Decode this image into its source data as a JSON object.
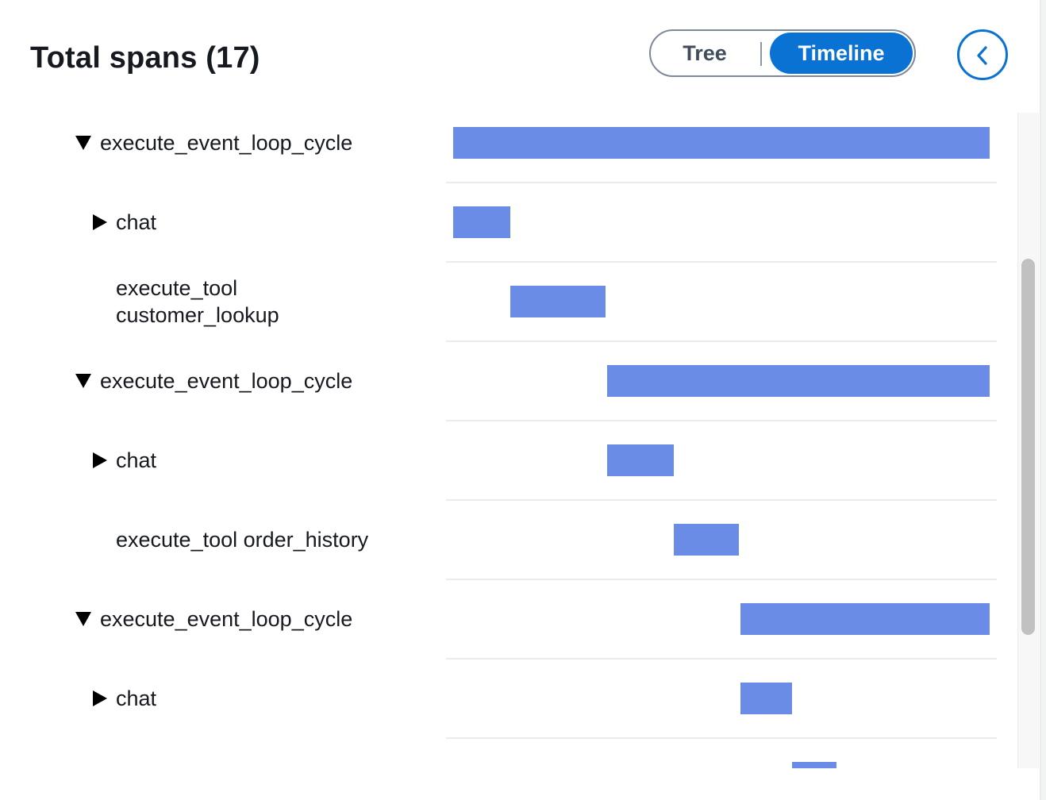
{
  "header": {
    "title": "Total spans (17)"
  },
  "view_toggle": {
    "options": [
      "Tree",
      "Timeline"
    ],
    "selected": "Timeline"
  },
  "collapse_button": {
    "icon": "chevron-left-icon"
  },
  "colors": {
    "accent": "#0972d3",
    "span_bar": "#6a8ce6",
    "text": "#16191f"
  },
  "timeline": {
    "rows": [
      {
        "label": "execute_event_loop_cycle",
        "expander": "expanded",
        "depth": 0,
        "start": 0.0,
        "end": 1.0
      },
      {
        "label": "chat",
        "expander": "collapsed",
        "depth": 1,
        "start": 0.0,
        "end": 0.106
      },
      {
        "label_lines": [
          "execute_tool",
          "customer_lookup"
        ],
        "expander": "none",
        "depth": 1,
        "start": 0.106,
        "end": 0.284
      },
      {
        "label": "execute_event_loop_cycle",
        "expander": "expanded",
        "depth": 0,
        "start": 0.287,
        "end": 1.0
      },
      {
        "label": "chat",
        "expander": "collapsed",
        "depth": 1,
        "start": 0.287,
        "end": 0.411
      },
      {
        "label": "execute_tool order_history",
        "expander": "none",
        "depth": 1,
        "start": 0.411,
        "end": 0.533
      },
      {
        "label": "execute_event_loop_cycle",
        "expander": "expanded",
        "depth": 0,
        "start": 0.536,
        "end": 1.0
      },
      {
        "label": "chat",
        "expander": "collapsed",
        "depth": 1,
        "start": 0.536,
        "end": 0.631
      },
      {
        "label": "",
        "expander": "none",
        "depth": 1,
        "start": 0.631,
        "end": 0.714
      }
    ]
  }
}
